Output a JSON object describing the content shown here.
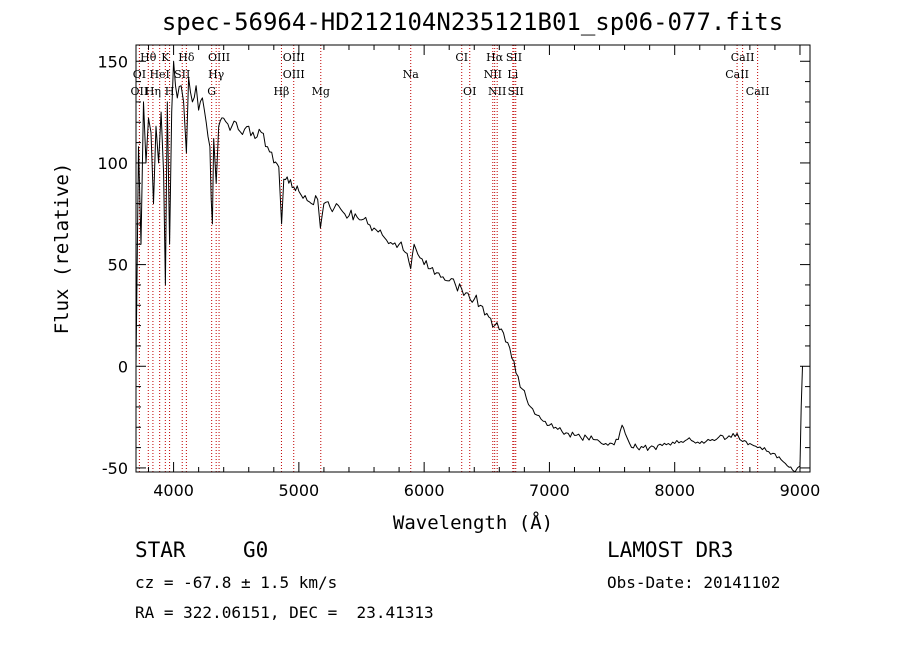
{
  "chart_data": {
    "type": "line",
    "title": "spec-56964-HD212104N235121B01_sp06-077.fits",
    "xlabel": "Wavelength (Å)",
    "ylabel": "Flux (relative)",
    "xlim": [
      3700,
      9080
    ],
    "ylim": [
      -52,
      158
    ],
    "x_ticks": [
      4000,
      5000,
      6000,
      7000,
      8000,
      9000
    ],
    "x_tick_labels": [
      "4000",
      "5000",
      "6000",
      "7000",
      "8000",
      "9000"
    ],
    "y_ticks": [
      -50,
      0,
      50,
      100,
      150
    ],
    "y_tick_labels": [
      "-50",
      "0",
      "50",
      "100",
      "150"
    ],
    "grid": false,
    "spectrum": {
      "name": "flux",
      "x": [
        3700,
        3720,
        3740,
        3760,
        3780,
        3800,
        3820,
        3840,
        3860,
        3880,
        3900,
        3920,
        3935,
        3950,
        3968,
        3985,
        4000,
        4030,
        4060,
        4080,
        4102,
        4120,
        4150,
        4180,
        4200,
        4230,
        4260,
        4290,
        4300,
        4310,
        4320,
        4340,
        4360,
        4400,
        4450,
        4500,
        4550,
        4600,
        4650,
        4700,
        4750,
        4800,
        4840,
        4862,
        4880,
        4920,
        4960,
        5000,
        5050,
        5100,
        5150,
        5172,
        5200,
        5250,
        5300,
        5350,
        5400,
        5450,
        5500,
        5550,
        5600,
        5650,
        5700,
        5750,
        5800,
        5850,
        5893,
        5920,
        5950,
        6000,
        6050,
        6100,
        6150,
        6200,
        6250,
        6300,
        6350,
        6400,
        6450,
        6500,
        6563,
        6600,
        6650,
        6700,
        6750,
        6800,
        6850,
        6900,
        6950,
        7000,
        7050,
        7100,
        7150,
        7200,
        7250,
        7300,
        7350,
        7400,
        7450,
        7500,
        7550,
        7580,
        7605,
        7640,
        7700,
        7750,
        7800,
        7850,
        7900,
        7950,
        8000,
        8050,
        8100,
        8150,
        8200,
        8250,
        8300,
        8350,
        8400,
        8450,
        8498,
        8520,
        8542,
        8570,
        8600,
        8630,
        8662,
        8700,
        8750,
        8800,
        8850,
        8900,
        8940,
        8960,
        8980,
        9000,
        9010,
        9020
      ],
      "y": [
        0,
        108,
        60,
        130,
        100,
        122,
        115,
        80,
        118,
        100,
        125,
        95,
        40,
        130,
        60,
        125,
        150,
        132,
        138,
        130,
        105,
        142,
        130,
        138,
        126,
        132,
        120,
        108,
        82,
        70,
        112,
        90,
        118,
        122,
        116,
        120,
        114,
        118,
        112,
        115,
        108,
        100,
        98,
        70,
        92,
        90,
        88,
        86,
        84,
        80,
        82,
        68,
        80,
        78,
        80,
        76,
        74,
        75,
        72,
        70,
        68,
        67,
        62,
        60,
        60,
        56,
        48,
        60,
        55,
        50,
        48,
        46,
        44,
        42,
        40,
        38,
        36,
        33,
        30,
        26,
        20,
        18,
        12,
        4,
        -5,
        -12,
        -20,
        -24,
        -27,
        -29,
        -30,
        -32,
        -33,
        -34,
        -35,
        -35,
        -36,
        -37,
        -38,
        -38,
        -36,
        -29,
        -33,
        -38,
        -40,
        -40,
        -40,
        -41,
        -39,
        -38,
        -38,
        -37,
        -36,
        -37,
        -38,
        -37,
        -36,
        -35,
        -36,
        -35,
        -33,
        -36,
        -37,
        -37,
        -38,
        -39,
        -40,
        -41,
        -42,
        -43,
        -46,
        -49,
        -51,
        -52,
        -50,
        -49,
        -20,
        0
      ]
    },
    "line_markers": [
      {
        "label": "Hθ",
        "x": 3798,
        "row": 1
      },
      {
        "label": "K",
        "x": 3934,
        "row": 1
      },
      {
        "label": "Hδ",
        "x": 4102,
        "row": 1
      },
      {
        "label": "OIII",
        "x": 4363,
        "row": 1
      },
      {
        "label": "OIII",
        "x": 4959,
        "row": 1
      },
      {
        "label": "CI",
        "x": 6300,
        "row": 1
      },
      {
        "label": "Hα",
        "x": 6563,
        "row": 1
      },
      {
        "label": "SII",
        "x": 6717,
        "row": 1
      },
      {
        "label": "CaII",
        "x": 8542,
        "row": 1
      },
      {
        "label": "OI",
        "x": 3727,
        "row": 2
      },
      {
        "label": "HeI",
        "x": 3889,
        "row": 2
      },
      {
        "label": "SII",
        "x": 4069,
        "row": 2
      },
      {
        "label": "Hγ",
        "x": 4340,
        "row": 2
      },
      {
        "label": "OIII",
        "x": 4959,
        "row": 2
      },
      {
        "label": "NII",
        "x": 6548,
        "row": 2
      },
      {
        "label": "Li",
        "x": 6708,
        "row": 2
      },
      {
        "label": "CaII",
        "x": 8498,
        "row": 2
      },
      {
        "label": "Na",
        "x": 5893,
        "row": 2
      },
      {
        "label": "OII",
        "x": 3727,
        "row": 3
      },
      {
        "label": "Hη",
        "x": 3835,
        "row": 3
      },
      {
        "label": "H",
        "x": 3968,
        "row": 3
      },
      {
        "label": "G",
        "x": 4304,
        "row": 3
      },
      {
        "label": "Hβ",
        "x": 4861,
        "row": 3
      },
      {
        "label": "Mg",
        "x": 5175,
        "row": 3
      },
      {
        "label": "OI",
        "x": 6364,
        "row": 3
      },
      {
        "label": "NII",
        "x": 6583,
        "row": 3
      },
      {
        "label": "SII",
        "x": 6731,
        "row": 3
      },
      {
        "label": "CaII",
        "x": 8662,
        "row": 3
      }
    ]
  },
  "info": {
    "object_class": "STAR",
    "subclass": "G0",
    "survey": "LAMOST DR3",
    "redshift": "cz = -67.8 ± 1.5 km/s",
    "obs_date": "Obs-Date: 20141102",
    "coords": "RA = 322.06151, DEC =  23.41313"
  }
}
